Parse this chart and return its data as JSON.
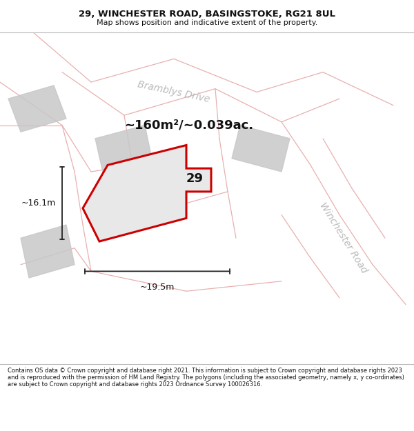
{
  "title": "29, WINCHESTER ROAD, BASINGSTOKE, RG21 8UL",
  "subtitle": "Map shows position and indicative extent of the property.",
  "footer": "Contains OS data © Crown copyright and database right 2021. This information is subject to Crown copyright and database rights 2023 and is reproduced with the permission of HM Land Registry. The polygons (including the associated geometry, namely x, y co-ordinates) are subject to Crown copyright and database rights 2023 Ordnance Survey 100026316.",
  "map_bg": "#ebebeb",
  "plot_fill": "#e8e8e8",
  "plot_outline": "#cc0000",
  "dim_color": "#222222",
  "area_text": "~160m²/~0.039ac.",
  "number_label": "29",
  "dim_width": "~19.5m",
  "dim_height": "~16.1m",
  "road_label_1": "Bramblys Drive",
  "road_label_2": "Winchester Road",
  "thin_line_color": "#e8b0b0",
  "road_label_color": "#bbbbbb",
  "title_fontsize": 9.5,
  "subtitle_fontsize": 8.0,
  "footer_fontsize": 6.0,
  "area_fontsize": 13,
  "number_fontsize": 13,
  "dim_fontsize": 9
}
